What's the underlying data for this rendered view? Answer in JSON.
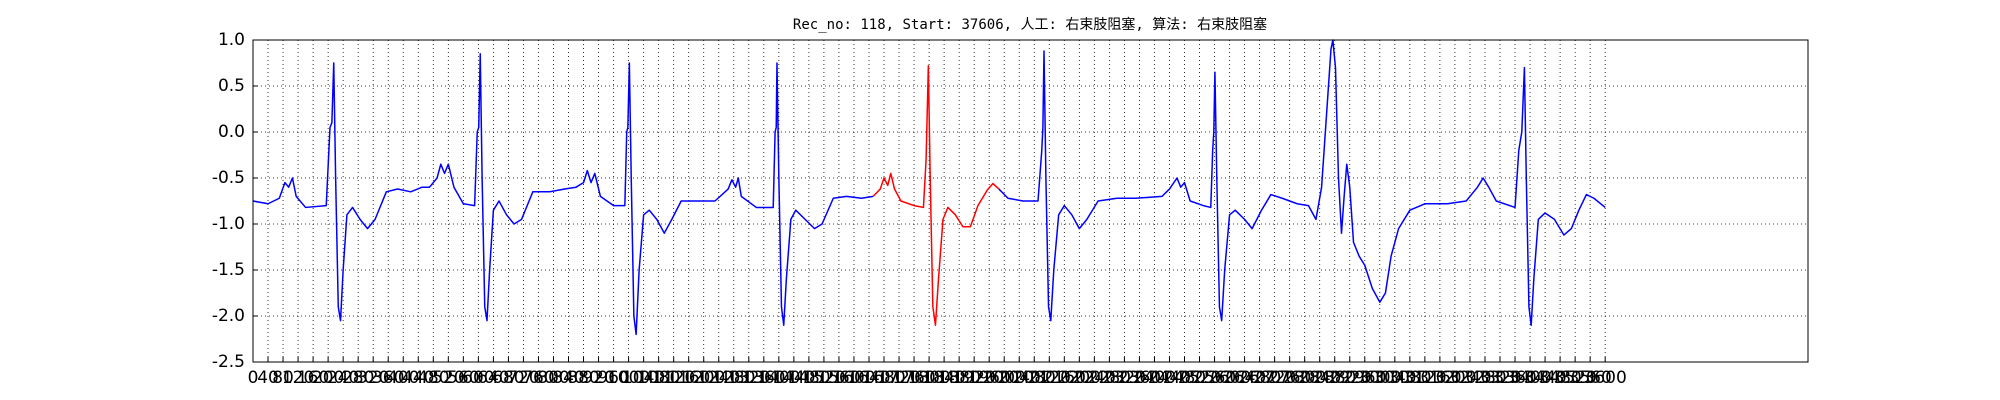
{
  "chart_data": {
    "type": "line",
    "title": "Rec_no: 118, Start: 37606, 人工: 右束肢阻塞, 算法: 右束肢阻塞",
    "xlim": [
      0,
      4140
    ],
    "xticks": [
      0,
      40,
      80,
      120,
      160,
      200,
      240,
      280,
      320,
      360,
      400,
      440,
      480,
      520,
      560,
      600,
      640,
      680,
      720,
      760,
      800,
      840,
      880,
      920,
      960,
      1000,
      1040,
      1080,
      1120,
      1160,
      1200,
      1240,
      1280,
      1320,
      1360,
      1400,
      1440,
      1480,
      1520,
      1560,
      1600,
      1640,
      1680,
      1720,
      1760,
      1800,
      1840,
      1880,
      1920,
      1960,
      2000,
      2040,
      2080,
      2120,
      2160,
      2200,
      2240,
      2280,
      2320,
      2360,
      2400,
      2440,
      2480,
      2520,
      2560,
      2600,
      2640,
      2680,
      2720,
      2760,
      2800,
      2840,
      2880,
      2920,
      2960,
      3000,
      3040,
      3080,
      3120,
      3160,
      3200,
      3240,
      3280,
      3320,
      3360,
      3400,
      3440,
      3480,
      3520,
      3560,
      3600
    ],
    "ylim": [
      -2.5,
      1.0
    ],
    "yticks": [
      {
        "value": 1,
        "label": "1.0"
      },
      0.5,
      {
        "value": 0,
        "label": "0.0"
      },
      -0.5,
      {
        "value": -1,
        "label": "-1.0"
      },
      -1.5,
      {
        "value": -2,
        "label": "-2.0"
      },
      -2.5
    ],
    "grid": true,
    "series": [
      {
        "color": "#0000ff",
        "x": [
          0,
          40,
          70,
          85,
          95,
          105,
          115,
          140,
          195,
          205,
          210,
          215,
          220,
          227,
          233,
          240,
          250,
          265,
          285,
          305,
          325,
          355,
          385,
          420,
          450,
          470,
          490,
          500,
          510,
          520,
          535,
          560,
          590,
          597,
          601,
          605,
          610,
          617,
          623,
          630,
          640,
          655,
          675,
          695,
          715,
          745,
          790,
          830,
          860,
          880,
          890,
          900,
          910,
          925,
          960,
          990,
          995,
          998,
          1002,
          1007,
          1014,
          1020,
          1028,
          1040,
          1055,
          1075,
          1095,
          1115,
          1140,
          1180,
          1230,
          1265,
          1275,
          1285,
          1292,
          1300,
          1340,
          1385,
          1390,
          1393,
          1395,
          1400,
          1407,
          1413,
          1420,
          1432,
          1445,
          1470,
          1495,
          1515,
          1545,
          1580,
          1620,
          1651
        ],
        "values": [
          -0.75,
          -0.78,
          -0.72,
          -0.55,
          -0.6,
          -0.5,
          -0.7,
          -0.82,
          -0.8,
          0.05,
          0.1,
          0.75,
          -0.5,
          -1.9,
          -2.05,
          -1.5,
          -0.9,
          -0.82,
          -0.95,
          -1.05,
          -0.95,
          -0.65,
          -0.62,
          -0.65,
          -0.6,
          -0.6,
          -0.5,
          -0.35,
          -0.45,
          -0.35,
          -0.6,
          -0.78,
          -0.8,
          0.0,
          0.05,
          0.85,
          -0.5,
          -1.9,
          -2.05,
          -1.5,
          -0.85,
          -0.75,
          -0.9,
          -1.0,
          -0.95,
          -0.65,
          -0.65,
          -0.62,
          -0.6,
          -0.55,
          -0.42,
          -0.55,
          -0.45,
          -0.7,
          -0.8,
          -0.8,
          0.0,
          0.05,
          0.75,
          -0.5,
          -2.0,
          -2.2,
          -1.5,
          -0.9,
          -0.85,
          -0.95,
          -1.1,
          -0.95,
          -0.75,
          -0.75,
          -0.75,
          -0.62,
          -0.52,
          -0.6,
          -0.5,
          -0.7,
          -0.82,
          -0.82,
          0.0,
          0.05,
          0.75,
          -0.5,
          -1.9,
          -2.1,
          -1.6,
          -0.95,
          -0.85,
          -0.95,
          -1.05,
          -1.0,
          -0.72,
          -0.7,
          -0.72,
          -0.7
        ]
      },
      {
        "color": "#ff0000",
        "x": [
          1651,
          1670,
          1680,
          1690,
          1698,
          1708,
          1725,
          1760,
          1785,
          1792,
          1798,
          1803,
          1810,
          1817,
          1825,
          1837,
          1850,
          1870,
          1890,
          1910,
          1930,
          1955,
          1970,
          1986
        ],
        "values": [
          -0.7,
          -0.62,
          -0.5,
          -0.58,
          -0.45,
          -0.62,
          -0.75,
          -0.8,
          -0.82,
          -0.3,
          0.72,
          -0.5,
          -1.9,
          -2.1,
          -1.6,
          -0.95,
          -0.82,
          -0.9,
          -1.03,
          -1.03,
          -0.8,
          -0.63,
          -0.56,
          -0.62
        ]
      },
      {
        "color": "#0000ff",
        "x": [
          1986,
          2010,
          2050,
          2090,
          2100,
          2103,
          2106,
          2111,
          2118,
          2124,
          2132,
          2145,
          2160,
          2180,
          2200,
          2220,
          2250,
          2300,
          2350,
          2420,
          2440,
          2460,
          2470,
          2480,
          2495,
          2530,
          2550,
          2555,
          2558,
          2561,
          2566,
          2573,
          2579,
          2587,
          2600,
          2615,
          2640,
          2660,
          2685,
          2710,
          2740,
          2780,
          2810,
          2830,
          2845,
          2860,
          2870,
          2875,
          2882,
          2890,
          2898,
          2905,
          2912,
          2920,
          2930,
          2945,
          2960,
          2980,
          3000,
          3015,
          3030,
          3050,
          3080,
          3120,
          3180,
          3230,
          3260,
          3275,
          3290,
          3310,
          3360,
          3370,
          3378,
          3385,
          3390,
          3397,
          3403,
          3410,
          3422,
          3440,
          3465,
          3490,
          3510,
          3530,
          3550,
          3570,
          3600
        ],
        "values": [
          -0.62,
          -0.72,
          -0.75,
          -0.75,
          -0.2,
          0.05,
          0.88,
          -0.5,
          -1.9,
          -2.05,
          -1.5,
          -0.9,
          -0.8,
          -0.9,
          -1.05,
          -0.95,
          -0.75,
          -0.72,
          -0.72,
          -0.7,
          -0.62,
          -0.5,
          -0.6,
          -0.55,
          -0.75,
          -0.8,
          -0.82,
          -0.2,
          0.0,
          0.65,
          -0.5,
          -1.9,
          -2.05,
          -1.5,
          -0.9,
          -0.85,
          -0.95,
          -1.05,
          -0.85,
          -0.68,
          -0.72,
          -0.78,
          -0.8,
          -0.95,
          -0.6,
          0.3,
          0.9,
          1.0,
          0.7,
          -0.5,
          -1.1,
          -0.7,
          -0.35,
          -0.6,
          -1.2,
          -1.35,
          -1.45,
          -1.7,
          -1.85,
          -1.75,
          -1.35,
          -1.05,
          -0.85,
          -0.78,
          -0.78,
          -0.75,
          -0.6,
          -0.5,
          -0.6,
          -0.75,
          -0.82,
          -0.2,
          0.0,
          0.7,
          -0.5,
          -1.9,
          -2.1,
          -1.6,
          -0.95,
          -0.88,
          -0.95,
          -1.12,
          -1.05,
          -0.85,
          -0.68,
          -0.72,
          -0.82
        ]
      }
    ]
  }
}
